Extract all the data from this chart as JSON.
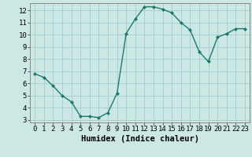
{
  "x": [
    0,
    1,
    2,
    3,
    4,
    5,
    6,
    7,
    8,
    9,
    10,
    11,
    12,
    13,
    14,
    15,
    16,
    17,
    18,
    19,
    20,
    21,
    22,
    23
  ],
  "y": [
    6.8,
    6.5,
    5.8,
    5.0,
    4.5,
    3.3,
    3.3,
    3.2,
    3.6,
    5.2,
    10.1,
    11.3,
    12.3,
    12.3,
    12.1,
    11.8,
    11.0,
    10.4,
    8.6,
    7.8,
    9.8,
    10.1,
    10.5,
    10.5
  ],
  "line_color": "#1a7a6e",
  "marker": "D",
  "marker_size": 2.0,
  "bg_color": "#cce8e4",
  "grid_color": "#aacfca",
  "xlabel": "Humidex (Indice chaleur)",
  "ylim": [
    2.8,
    12.6
  ],
  "xlim": [
    -0.5,
    23.5
  ],
  "yticks": [
    3,
    4,
    5,
    6,
    7,
    8,
    9,
    10,
    11,
    12
  ],
  "xticks": [
    0,
    1,
    2,
    3,
    4,
    5,
    6,
    7,
    8,
    9,
    10,
    11,
    12,
    13,
    14,
    15,
    16,
    17,
    18,
    19,
    20,
    21,
    22,
    23
  ],
  "xlabel_fontsize": 7.5,
  "tick_fontsize": 6.5,
  "line_width": 1.0
}
